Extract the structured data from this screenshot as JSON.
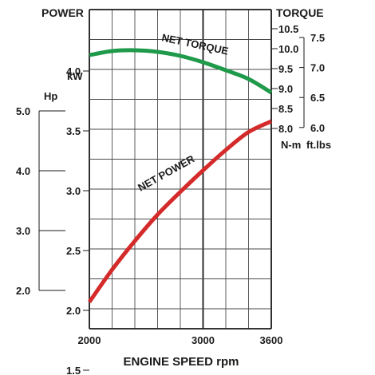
{
  "chart_data": {
    "type": "line",
    "xlabel": "ENGINE SPEED rpm",
    "x_ticks": [
      "2000",
      "3000",
      "3600"
    ],
    "left_title": "POWER",
    "kw_unit": "kW",
    "hp_unit": "Hp",
    "kw_ticks": [
      "4.0",
      "3.5",
      "3.0",
      "2.5",
      "2.0",
      "1.5"
    ],
    "hp_ticks": [
      "5.0",
      "4.0",
      "3.0",
      "2.0"
    ],
    "right_title": "TORQUE",
    "nm_ticks": [
      "10.5",
      "10.0",
      "9.5",
      "9.0",
      "8.5",
      "8.0"
    ],
    "ftlbs_ticks": [
      "7.5",
      "7.0",
      "6.5",
      "6.0"
    ],
    "nm_unit": "N-m",
    "ftlbs_unit": "ft.lbs",
    "xlim": [
      2000,
      3600
    ],
    "kw_lim": [
      1.0,
      4.5
    ],
    "torque_lim": [
      8.0,
      10.5
    ],
    "colors": {
      "torque": "#1e9a4a",
      "power": "#d42a2a"
    },
    "series": [
      {
        "name": "NET TORQUE",
        "unit": "N-m",
        "x": [
          2000,
          2200,
          2400,
          2600,
          2800,
          3000,
          3200,
          3400,
          3600
        ],
        "values": [
          9.84,
          9.94,
          9.96,
          9.92,
          9.82,
          9.66,
          9.46,
          9.24,
          8.9
        ]
      },
      {
        "name": "NET POWER",
        "unit": "kW",
        "x": [
          2000,
          2200,
          2400,
          2600,
          2800,
          3000,
          3200,
          3400,
          3600
        ],
        "values": [
          2.07,
          2.34,
          2.58,
          2.8,
          2.99,
          3.17,
          3.34,
          3.49,
          3.58
        ]
      }
    ]
  }
}
